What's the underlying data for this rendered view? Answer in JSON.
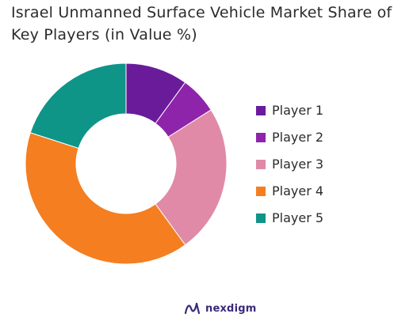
{
  "chart_data": {
    "type": "pie",
    "variant": "donut",
    "title_lines": [
      "Israel Unmanned Surface Vehicle Market Share of",
      "Key Players (in Value %)"
    ],
    "categories": [
      "Player 1",
      "Player 2",
      "Player 3",
      "Player 4",
      "Player 5"
    ],
    "values": [
      10,
      6,
      24,
      40,
      20
    ],
    "colors": [
      "#6a1b9a",
      "#8e24aa",
      "#e08aa8",
      "#f47e20",
      "#0f9488"
    ],
    "legend_position": "right"
  },
  "branding": {
    "logo_text": "nexdigm",
    "logo_color": "#3b2a7a"
  }
}
